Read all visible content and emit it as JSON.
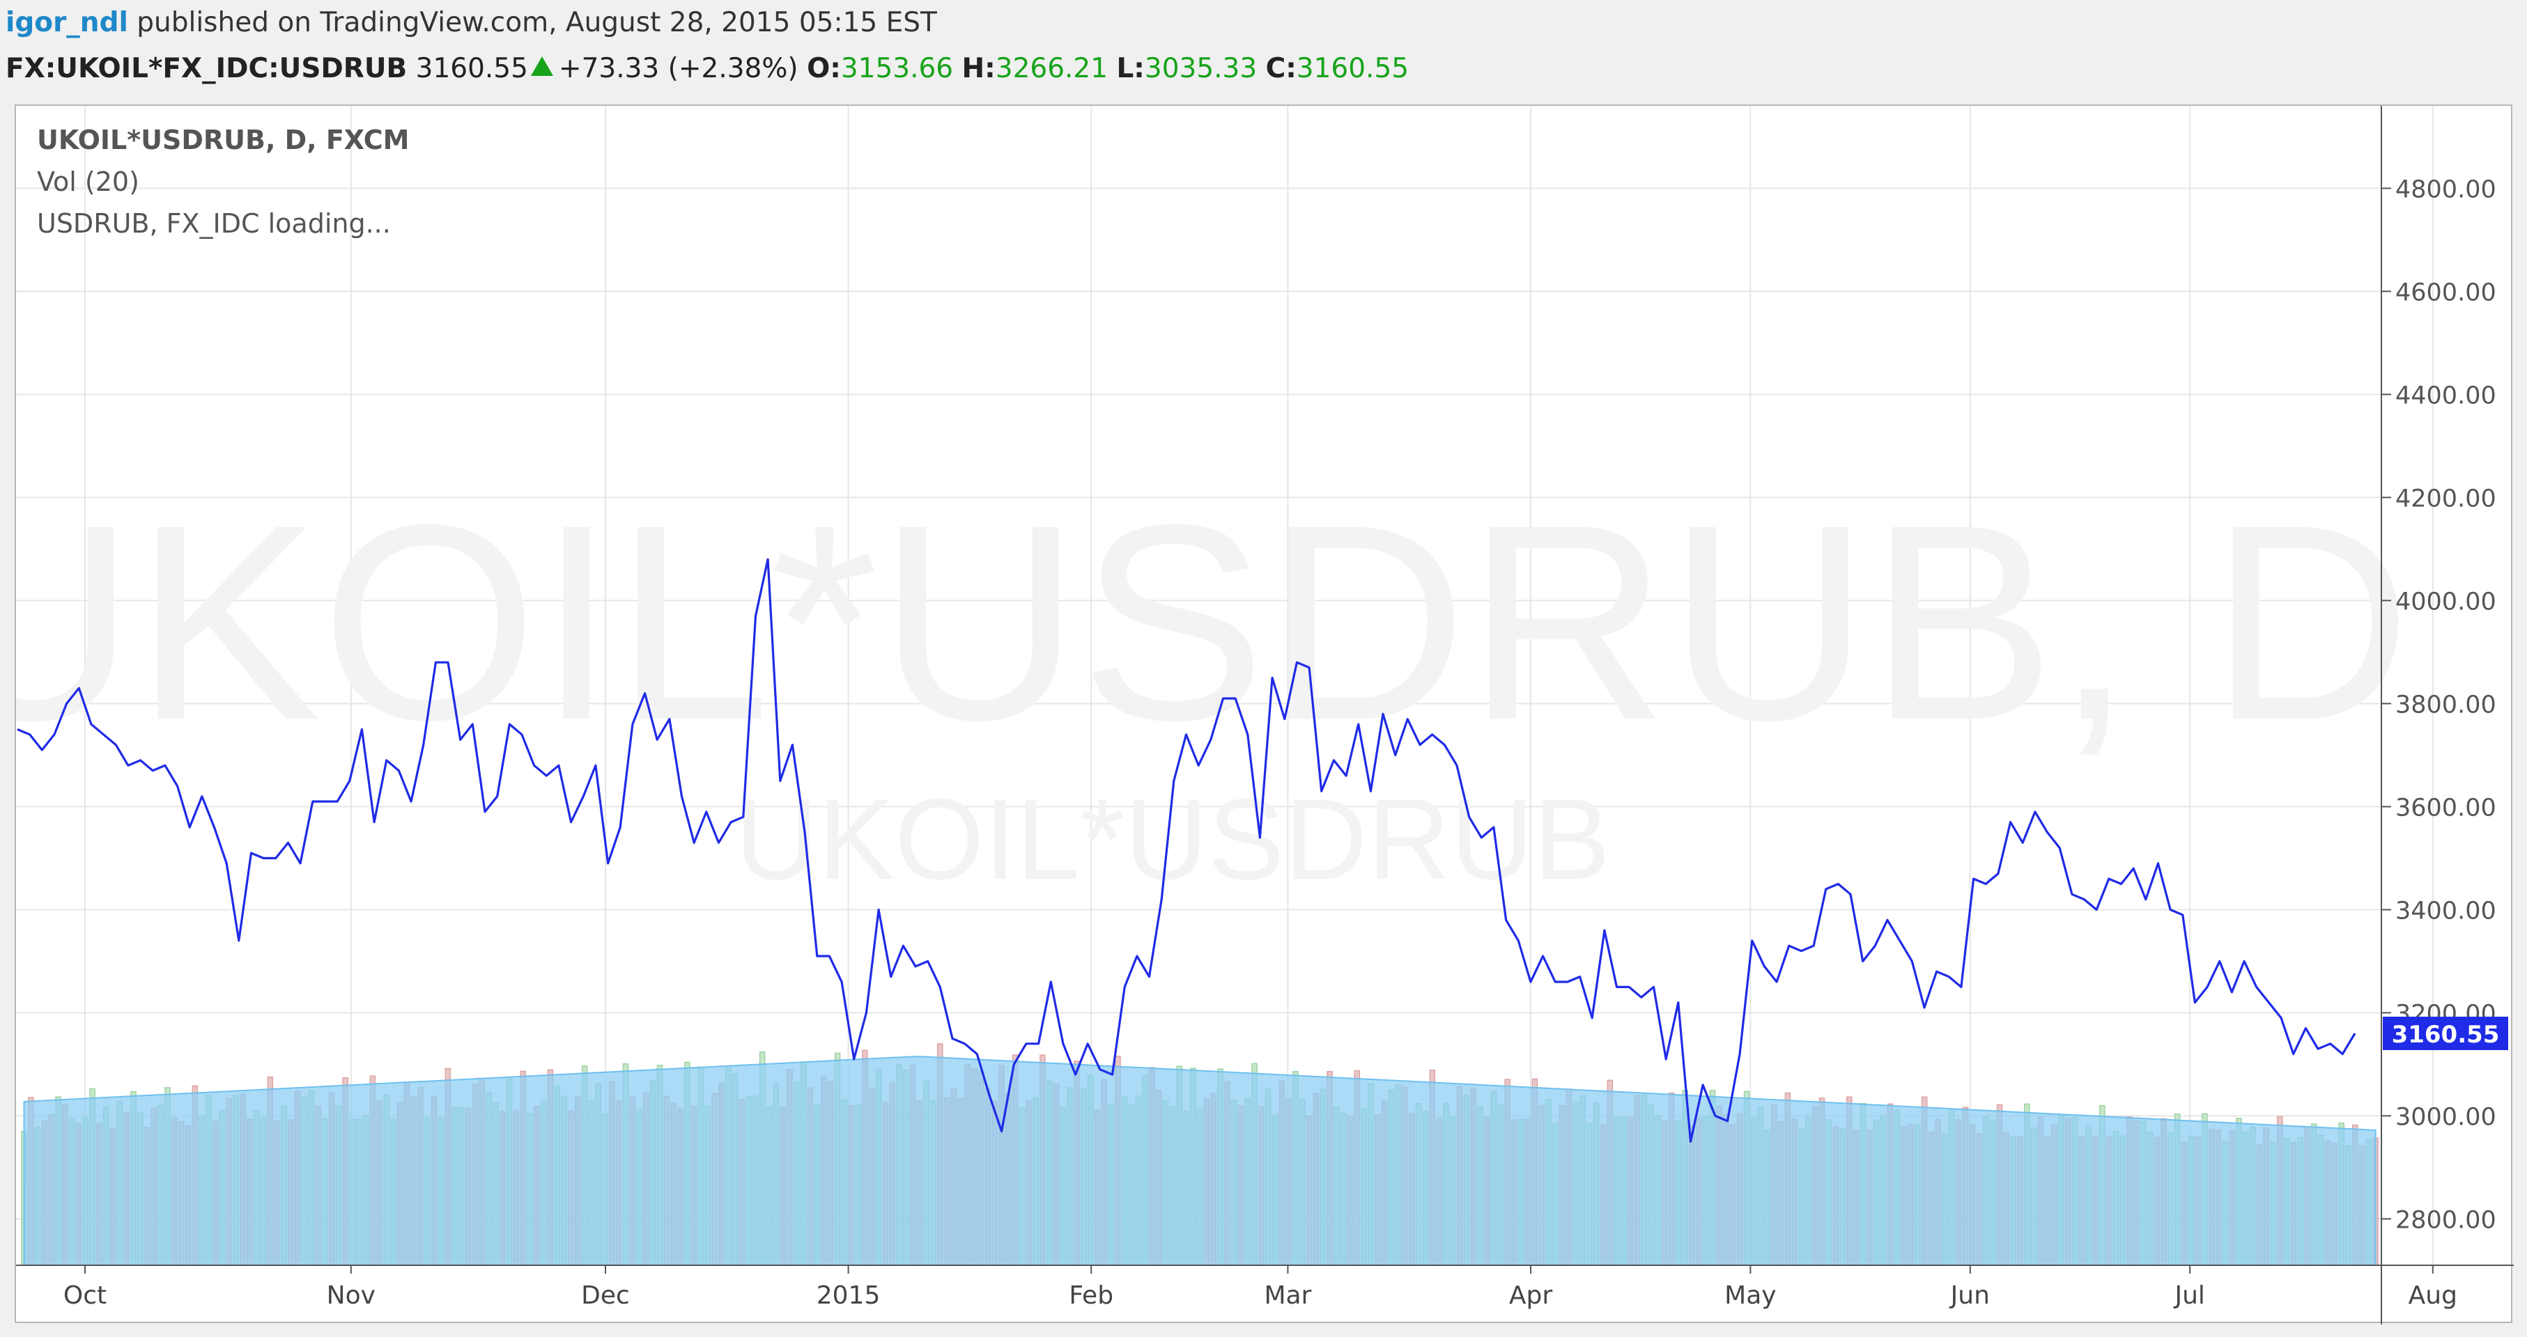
{
  "header": {
    "user": "igor_ndl",
    "published": "published on TradingView.com, August 28, 2015 05:15 EST"
  },
  "quote": {
    "symbol": "FX:UKOIL*FX_IDC:USDRUB",
    "last": "3160.55",
    "change": "+73.33 (+2.38%)",
    "open_label": "O:",
    "open": "3153.66",
    "high_label": "H:",
    "high": "3266.21",
    "low_label": "L:",
    "low": "3035.33",
    "close_label": "C:",
    "close": "3160.55",
    "up_color": "#17a31a"
  },
  "legend": {
    "line1": "UKOIL*USDRUB, D, FXCM",
    "line2": "Vol (20)",
    "line3": "USDRUB, FX_IDC loading..."
  },
  "watermark": {
    "big": "UKOIL*USDRUB, D",
    "small": "UKOIL*USDRUB"
  },
  "chart_data": {
    "type": "line",
    "price_series": {
      "color": "#1f2be6",
      "last_value_label": "3160.55",
      "x_index_range": [
        0,
        190
      ],
      "points": [
        [
          0,
          3750
        ],
        [
          1,
          3740
        ],
        [
          2,
          3710
        ],
        [
          3,
          3740
        ],
        [
          4,
          3800
        ],
        [
          5,
          3830
        ],
        [
          6,
          3760
        ],
        [
          7,
          3740
        ],
        [
          8,
          3720
        ],
        [
          9,
          3680
        ],
        [
          10,
          3690
        ],
        [
          11,
          3670
        ],
        [
          12,
          3680
        ],
        [
          13,
          3640
        ],
        [
          14,
          3560
        ],
        [
          15,
          3620
        ],
        [
          16,
          3560
        ],
        [
          17,
          3490
        ],
        [
          18,
          3340
        ],
        [
          19,
          3510
        ],
        [
          20,
          3500
        ],
        [
          21,
          3500
        ],
        [
          22,
          3530
        ],
        [
          23,
          3490
        ],
        [
          24,
          3610
        ],
        [
          25,
          3610
        ],
        [
          26,
          3610
        ],
        [
          27,
          3650
        ],
        [
          28,
          3750
        ],
        [
          29,
          3570
        ],
        [
          30,
          3690
        ],
        [
          31,
          3670
        ],
        [
          32,
          3610
        ],
        [
          33,
          3720
        ],
        [
          34,
          3880
        ],
        [
          35,
          3880
        ],
        [
          36,
          3730
        ],
        [
          37,
          3760
        ],
        [
          38,
          3590
        ],
        [
          39,
          3620
        ],
        [
          40,
          3760
        ],
        [
          41,
          3740
        ],
        [
          42,
          3680
        ],
        [
          43,
          3660
        ],
        [
          44,
          3680
        ],
        [
          45,
          3570
        ],
        [
          46,
          3620
        ],
        [
          47,
          3680
        ],
        [
          48,
          3490
        ],
        [
          49,
          3560
        ],
        [
          50,
          3760
        ],
        [
          51,
          3820
        ],
        [
          52,
          3730
        ],
        [
          53,
          3770
        ],
        [
          54,
          3620
        ],
        [
          55,
          3530
        ],
        [
          56,
          3590
        ],
        [
          57,
          3530
        ],
        [
          58,
          3570
        ],
        [
          59,
          3580
        ],
        [
          60,
          3970
        ],
        [
          61,
          4080
        ],
        [
          62,
          3650
        ],
        [
          63,
          3720
        ],
        [
          64,
          3550
        ],
        [
          65,
          3310
        ],
        [
          66,
          3310
        ],
        [
          67,
          3260
        ],
        [
          68,
          3110
        ],
        [
          69,
          3200
        ],
        [
          70,
          3400
        ],
        [
          71,
          3270
        ],
        [
          72,
          3330
        ],
        [
          73,
          3290
        ],
        [
          74,
          3300
        ],
        [
          75,
          3250
        ],
        [
          76,
          3150
        ],
        [
          77,
          3140
        ],
        [
          78,
          3120
        ],
        [
          79,
          3040
        ],
        [
          80,
          2970
        ],
        [
          81,
          3100
        ],
        [
          82,
          3140
        ],
        [
          83,
          3140
        ],
        [
          84,
          3260
        ],
        [
          85,
          3140
        ],
        [
          86,
          3080
        ],
        [
          87,
          3140
        ],
        [
          88,
          3090
        ],
        [
          89,
          3080
        ],
        [
          90,
          3250
        ],
        [
          91,
          3310
        ],
        [
          92,
          3270
        ],
        [
          93,
          3420
        ],
        [
          94,
          3650
        ],
        [
          95,
          3740
        ],
        [
          96,
          3680
        ],
        [
          97,
          3730
        ],
        [
          98,
          3810
        ],
        [
          99,
          3810
        ],
        [
          100,
          3740
        ],
        [
          101,
          3540
        ],
        [
          102,
          3850
        ],
        [
          103,
          3770
        ],
        [
          104,
          3880
        ],
        [
          105,
          3870
        ],
        [
          106,
          3630
        ],
        [
          107,
          3690
        ],
        [
          108,
          3660
        ],
        [
          109,
          3760
        ],
        [
          110,
          3630
        ],
        [
          111,
          3780
        ],
        [
          112,
          3700
        ],
        [
          113,
          3770
        ],
        [
          114,
          3720
        ],
        [
          115,
          3740
        ],
        [
          116,
          3720
        ],
        [
          117,
          3680
        ],
        [
          118,
          3580
        ],
        [
          119,
          3540
        ],
        [
          120,
          3560
        ],
        [
          121,
          3380
        ],
        [
          122,
          3340
        ],
        [
          123,
          3260
        ],
        [
          124,
          3310
        ],
        [
          125,
          3260
        ],
        [
          126,
          3260
        ],
        [
          127,
          3270
        ],
        [
          128,
          3190
        ],
        [
          129,
          3360
        ],
        [
          130,
          3250
        ],
        [
          131,
          3250
        ],
        [
          132,
          3230
        ],
        [
          133,
          3250
        ],
        [
          134,
          3110
        ],
        [
          135,
          3220
        ],
        [
          136,
          2950
        ],
        [
          137,
          3060
        ],
        [
          138,
          3000
        ],
        [
          139,
          2990
        ],
        [
          140,
          3120
        ],
        [
          141,
          3340
        ],
        [
          142,
          3290
        ],
        [
          143,
          3260
        ],
        [
          144,
          3330
        ],
        [
          145,
          3320
        ],
        [
          146,
          3330
        ],
        [
          147,
          3440
        ],
        [
          148,
          3450
        ],
        [
          149,
          3430
        ],
        [
          150,
          3300
        ],
        [
          151,
          3330
        ],
        [
          152,
          3380
        ],
        [
          153,
          3340
        ],
        [
          154,
          3300
        ],
        [
          155,
          3210
        ],
        [
          156,
          3280
        ],
        [
          157,
          3270
        ],
        [
          158,
          3250
        ],
        [
          159,
          3460
        ],
        [
          160,
          3450
        ],
        [
          161,
          3470
        ],
        [
          162,
          3570
        ],
        [
          163,
          3530
        ],
        [
          164,
          3590
        ],
        [
          165,
          3550
        ],
        [
          166,
          3520
        ],
        [
          167,
          3430
        ],
        [
          168,
          3420
        ],
        [
          169,
          3400
        ],
        [
          170,
          3460
        ],
        [
          171,
          3450
        ],
        [
          172,
          3480
        ],
        [
          173,
          3420
        ],
        [
          174,
          3490
        ],
        [
          175,
          3400
        ],
        [
          176,
          3390
        ],
        [
          177,
          3220
        ],
        [
          178,
          3250
        ],
        [
          179,
          3300
        ],
        [
          180,
          3240
        ],
        [
          181,
          3300
        ],
        [
          182,
          3250
        ],
        [
          183,
          3220
        ],
        [
          184,
          3190
        ],
        [
          185,
          3120
        ],
        [
          186,
          3170
        ],
        [
          187,
          3130
        ],
        [
          188,
          3140
        ],
        [
          189,
          3120
        ],
        [
          190,
          3160
        ]
      ]
    },
    "volume_series": {
      "colors": {
        "up": "#c6e7c9",
        "down": "#e8c6c6",
        "up_edge": "#9ed3a3",
        "down_edge": "#e0a5a5",
        "ma_fill": "#8fcff4",
        "ma_line": "#6fc0ee"
      },
      "note": "Volume bars and Vol (20) moving average are drawn in the lower band of the pane."
    },
    "y_axis": {
      "ticks": [
        "4800.00",
        "4600.00",
        "4400.00",
        "4200.00",
        "4000.00",
        "3800.00",
        "3600.00",
        "3400.00",
        "3200.00",
        "3000.00",
        "2800.00"
      ],
      "ylim": [
        2710,
        4960
      ],
      "grid": true
    },
    "x_axis": {
      "labels": [
        {
          "label": "Oct",
          "index": 0
        },
        {
          "label": "Nov",
          "index": 23
        },
        {
          "label": "Dec",
          "index": 45
        },
        {
          "label": "2015",
          "index": 66
        },
        {
          "label": "Feb",
          "index": 87
        },
        {
          "label": "Mar",
          "index": 104
        },
        {
          "label": "Apr",
          "index": 125
        },
        {
          "label": "May",
          "index": 144
        },
        {
          "label": "Jun",
          "index": 163
        },
        {
          "label": "Jul",
          "index": 182
        },
        {
          "label": "Aug",
          "index": 203
        }
      ],
      "grid": true
    }
  }
}
